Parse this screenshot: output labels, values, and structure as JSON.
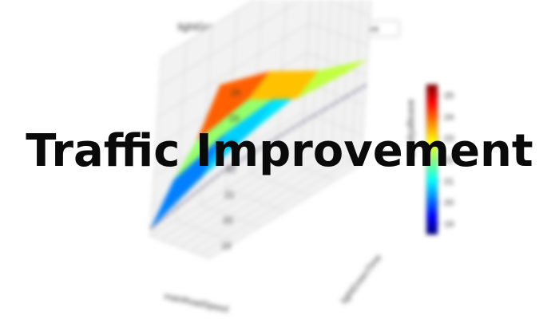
{
  "overlay": {
    "title": "Traffic Improvement"
  },
  "chart_data": {
    "type": "surface3d",
    "title": "lightGreenTime vs. Flow: Most Efficient",
    "legend": [
      "Most Efficient"
    ],
    "xlabel": "mainRoadSpeed",
    "ylabel": "lightGreenTime",
    "zlabel": "averageSpeed",
    "zticks": [
      19,
      20,
      21,
      22,
      23,
      24,
      25
    ],
    "zlim": [
      18.5,
      25.5
    ],
    "colorbar": {
      "ticks": [
        19,
        20,
        21,
        22,
        23,
        24,
        25
      ],
      "range": [
        18.5,
        25.5
      ],
      "colormap": "jet"
    },
    "surface": {
      "x": [
        0,
        1,
        2,
        3
      ],
      "y": [
        0,
        1,
        2,
        3
      ],
      "z": [
        [
          18.8,
          21.0,
          22.8,
          25.3
        ],
        [
          19.6,
          21.6,
          23.2,
          24.6
        ],
        [
          20.2,
          21.8,
          22.0,
          23.4
        ],
        [
          20.6,
          21.2,
          21.8,
          22.6
        ]
      ]
    },
    "efficiency_line": {
      "points": [
        [
          0,
          0,
          18.8
        ],
        [
          1,
          1,
          20.1
        ],
        [
          2,
          2,
          20.9
        ],
        [
          3,
          3,
          21.6
        ]
      ],
      "style": "dashed"
    }
  }
}
